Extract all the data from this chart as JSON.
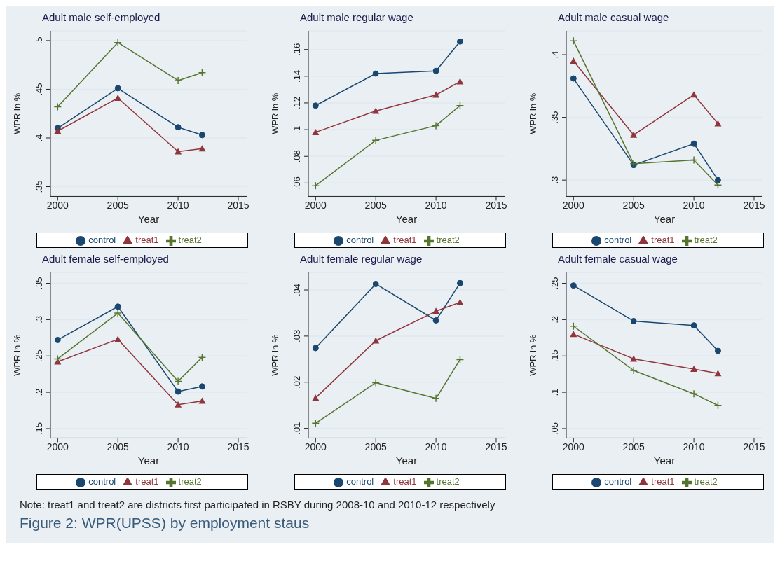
{
  "chart_data": [
    {
      "type": "line",
      "title": "Adult male self-employed",
      "xlabel": "Year",
      "ylabel": "WPR in %",
      "x": [
        2000,
        2005,
        2010,
        2012
      ],
      "xlim": [
        1999.4,
        2015.7
      ],
      "xticks": [
        2000,
        2005,
        2010,
        2015
      ],
      "ylim": [
        0.34,
        0.51
      ],
      "yticks": [
        {
          "value": 0.35,
          "label": ".35"
        },
        {
          "value": 0.4,
          "label": ".4"
        },
        {
          "value": 0.45,
          "label": ".45"
        },
        {
          "value": 0.5,
          "label": ".5"
        }
      ],
      "grid": "y",
      "legend": "bottom",
      "series": [
        {
          "name": "control",
          "color": "#1a476f",
          "marker": "circle",
          "values": [
            0.41,
            0.451,
            0.411,
            0.403
          ]
        },
        {
          "name": "treat1",
          "color": "#90353b",
          "marker": "triangle",
          "values": [
            0.407,
            0.441,
            0.386,
            0.389
          ]
        },
        {
          "name": "treat2",
          "color": "#55752f",
          "marker": "cross",
          "values": [
            0.432,
            0.498,
            0.459,
            0.467
          ]
        }
      ]
    },
    {
      "type": "line",
      "title": "Adult male regular wage",
      "xlabel": "Year",
      "ylabel": "WPR in %",
      "x": [
        2000,
        2005,
        2010,
        2012
      ],
      "xlim": [
        1999.4,
        2015.7
      ],
      "xticks": [
        2000,
        2005,
        2010,
        2015
      ],
      "ylim": [
        0.05,
        0.174
      ],
      "yticks": [
        {
          "value": 0.06,
          "label": ".06"
        },
        {
          "value": 0.08,
          "label": ".08"
        },
        {
          "value": 0.1,
          "label": ".1"
        },
        {
          "value": 0.12,
          "label": ".12"
        },
        {
          "value": 0.14,
          "label": ".14"
        },
        {
          "value": 0.16,
          "label": ".16"
        }
      ],
      "grid": "y",
      "legend": "bottom",
      "series": [
        {
          "name": "control",
          "color": "#1a476f",
          "marker": "circle",
          "values": [
            0.118,
            0.142,
            0.144,
            0.166
          ]
        },
        {
          "name": "treat1",
          "color": "#90353b",
          "marker": "triangle",
          "values": [
            0.098,
            0.114,
            0.126,
            0.136
          ]
        },
        {
          "name": "treat2",
          "color": "#55752f",
          "marker": "cross",
          "values": [
            0.058,
            0.092,
            0.103,
            0.118
          ]
        }
      ]
    },
    {
      "type": "line",
      "title": "Adult male casual wage",
      "xlabel": "Year",
      "ylabel": "WPR in %",
      "x": [
        2000,
        2005,
        2010,
        2012
      ],
      "xlim": [
        1999.4,
        2015.7
      ],
      "xticks": [
        2000,
        2005,
        2010,
        2015
      ],
      "ylim": [
        0.287,
        0.419
      ],
      "yticks": [
        {
          "value": 0.3,
          "label": ".3"
        },
        {
          "value": 0.35,
          "label": ".35"
        },
        {
          "value": 0.4,
          "label": ".4"
        }
      ],
      "grid": "y",
      "legend": "bottom",
      "series": [
        {
          "name": "control",
          "color": "#1a476f",
          "marker": "circle",
          "values": [
            0.381,
            0.312,
            0.329,
            0.3
          ]
        },
        {
          "name": "treat1",
          "color": "#90353b",
          "marker": "triangle",
          "values": [
            0.395,
            0.336,
            0.368,
            0.345
          ]
        },
        {
          "name": "treat2",
          "color": "#55752f",
          "marker": "cross",
          "values": [
            0.411,
            0.313,
            0.316,
            0.296
          ]
        }
      ]
    },
    {
      "type": "line",
      "title": "Adult female self-employed",
      "xlabel": "Year",
      "ylabel": "WPR in %",
      "x": [
        2000,
        2005,
        2010,
        2012
      ],
      "xlim": [
        1999.4,
        2015.7
      ],
      "xticks": [
        2000,
        2005,
        2010,
        2015
      ],
      "ylim": [
        0.137,
        0.365
      ],
      "yticks": [
        {
          "value": 0.15,
          "label": ".15"
        },
        {
          "value": 0.2,
          "label": ".2"
        },
        {
          "value": 0.25,
          "label": ".25"
        },
        {
          "value": 0.3,
          "label": ".3"
        },
        {
          "value": 0.35,
          "label": ".35"
        }
      ],
      "grid": "y",
      "legend": "bottom",
      "series": [
        {
          "name": "control",
          "color": "#1a476f",
          "marker": "circle",
          "values": [
            0.272,
            0.318,
            0.201,
            0.208
          ]
        },
        {
          "name": "treat1",
          "color": "#90353b",
          "marker": "triangle",
          "values": [
            0.242,
            0.273,
            0.183,
            0.188
          ]
        },
        {
          "name": "treat2",
          "color": "#55752f",
          "marker": "cross",
          "values": [
            0.246,
            0.309,
            0.215,
            0.248
          ]
        }
      ]
    },
    {
      "type": "line",
      "title": "Adult female regular wage",
      "xlabel": "Year",
      "ylabel": "WPR in %",
      "x": [
        2000,
        2005,
        2010,
        2012
      ],
      "xlim": [
        1999.4,
        2015.7
      ],
      "xticks": [
        2000,
        2005,
        2010,
        2015
      ],
      "ylim": [
        0.0079,
        0.0438
      ],
      "yticks": [
        {
          "value": 0.01,
          "label": ".01"
        },
        {
          "value": 0.02,
          "label": ".02"
        },
        {
          "value": 0.03,
          "label": ".03"
        },
        {
          "value": 0.04,
          "label": ".04"
        }
      ],
      "grid": "y",
      "legend": "bottom",
      "series": [
        {
          "name": "control",
          "color": "#1a476f",
          "marker": "circle",
          "values": [
            0.0274,
            0.0413,
            0.0334,
            0.0415
          ]
        },
        {
          "name": "treat1",
          "color": "#90353b",
          "marker": "triangle",
          "values": [
            0.0166,
            0.029,
            0.0354,
            0.0373
          ]
        },
        {
          "name": "treat2",
          "color": "#55752f",
          "marker": "cross",
          "values": [
            0.0111,
            0.0199,
            0.0165,
            0.0249
          ]
        }
      ]
    },
    {
      "type": "line",
      "title": "Adult female casual wage",
      "xlabel": "Year",
      "ylabel": "WPR in %",
      "x": [
        2000,
        2005,
        2010,
        2012
      ],
      "xlim": [
        1999.4,
        2015.7
      ],
      "xticks": [
        2000,
        2005,
        2010,
        2015
      ],
      "ylim": [
        0.037,
        0.265
      ],
      "yticks": [
        {
          "value": 0.05,
          "label": ".05"
        },
        {
          "value": 0.1,
          "label": ".1"
        },
        {
          "value": 0.15,
          "label": ".15"
        },
        {
          "value": 0.2,
          "label": ".2"
        },
        {
          "value": 0.25,
          "label": ".25"
        }
      ],
      "grid": "y",
      "legend": "bottom",
      "series": [
        {
          "name": "control",
          "color": "#1a476f",
          "marker": "circle",
          "values": [
            0.247,
            0.198,
            0.192,
            0.157
          ]
        },
        {
          "name": "treat1",
          "color": "#90353b",
          "marker": "triangle",
          "values": [
            0.18,
            0.146,
            0.132,
            0.126
          ]
        },
        {
          "name": "treat2",
          "color": "#55752f",
          "marker": "cross",
          "values": [
            0.191,
            0.13,
            0.098,
            0.082
          ]
        }
      ]
    },
    {
      "type": "other",
      "title": "Figure 2: WPR(UPSS) by employment staus",
      "annotations": [
        "Note: treat1 and treat2 are districts first participated in RSBY during 2008-10 and 2010-12 respectively"
      ]
    }
  ]
}
